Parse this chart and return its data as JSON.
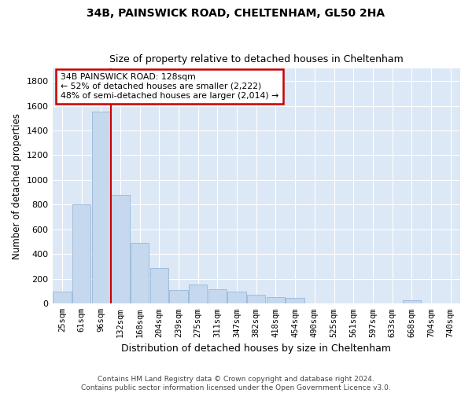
{
  "title1": "34B, PAINSWICK ROAD, CHELTENHAM, GL50 2HA",
  "title2": "Size of property relative to detached houses in Cheltenham",
  "xlabel": "Distribution of detached houses by size in Cheltenham",
  "ylabel": "Number of detached properties",
  "categories": [
    "25sqm",
    "61sqm",
    "96sqm",
    "132sqm",
    "168sqm",
    "204sqm",
    "239sqm",
    "275sqm",
    "311sqm",
    "347sqm",
    "382sqm",
    "418sqm",
    "454sqm",
    "490sqm",
    "525sqm",
    "561sqm",
    "597sqm",
    "633sqm",
    "668sqm",
    "704sqm",
    "740sqm"
  ],
  "values": [
    100,
    800,
    1550,
    880,
    490,
    290,
    110,
    155,
    115,
    100,
    75,
    55,
    45,
    0,
    0,
    0,
    0,
    0,
    25,
    0,
    0
  ],
  "bar_color": "#c5d8ee",
  "bar_edge_color": "#8ab0d4",
  "vline_pos": 2.5,
  "annotation_text": "34B PAINSWICK ROAD: 128sqm\n← 52% of detached houses are smaller (2,222)\n48% of semi-detached houses are larger (2,014) →",
  "annotation_box_color": "#ffffff",
  "annotation_border_color": "#cc0000",
  "ylim": [
    0,
    1900
  ],
  "yticks": [
    0,
    200,
    400,
    600,
    800,
    1000,
    1200,
    1400,
    1600,
    1800
  ],
  "plot_bg_color": "#dce8f5",
  "fig_bg_color": "#ffffff",
  "grid_color": "#ffffff",
  "footnote": "Contains HM Land Registry data © Crown copyright and database right 2024.\nContains public sector information licensed under the Open Government Licence v3.0."
}
